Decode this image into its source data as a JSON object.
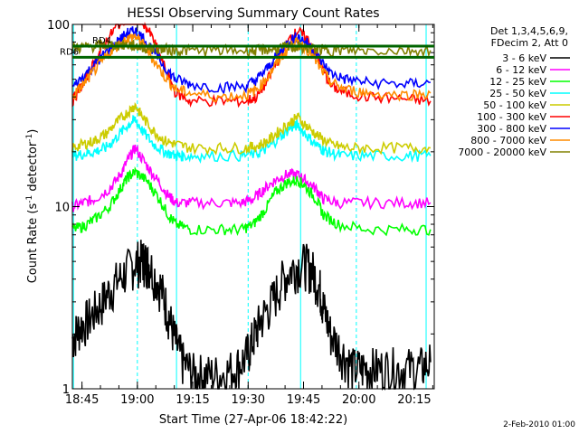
{
  "chart_data": {
    "type": "line",
    "title": "HESSI Observing Summary Count Rates",
    "xlabel": "Start Time (27-Apr-06 18:42:22)",
    "ylabel_main": "Count Rate (s",
    "ylabel_sup": "-1",
    "ylabel_mid": " detector",
    "ylabel_sup2": "-1",
    "ylabel_end": ")",
    "y_scale": "log",
    "ylim": [
      1,
      100
    ],
    "y_ticks": [
      {
        "value": 1,
        "label": "1"
      },
      {
        "value": 10,
        "label": "10"
      },
      {
        "value": 100,
        "label": "100"
      }
    ],
    "xlim_minutes": [
      0,
      98
    ],
    "x_ticks": [
      {
        "t": 2.6,
        "label": "18:45"
      },
      {
        "t": 17.6,
        "label": "19:00"
      },
      {
        "t": 32.6,
        "label": "19:15"
      },
      {
        "t": 47.6,
        "label": "19:30"
      },
      {
        "t": 62.6,
        "label": "19:45"
      },
      {
        "t": 77.6,
        "label": "20:00"
      },
      {
        "t": 92.6,
        "label": "20:15"
      }
    ],
    "legend": {
      "placement": "right",
      "header": [
        "Det 1,3,4,5,6,9,",
        "FDecim 2, Att 0"
      ]
    },
    "series": [
      {
        "name": "3 - 6 keV",
        "color": "#000000",
        "x": [
          0,
          2,
          5,
          8,
          11,
          14,
          17,
          19,
          20,
          21,
          24,
          26,
          28,
          30,
          33,
          36,
          40,
          44,
          47,
          49,
          51,
          54,
          57,
          60,
          63,
          65,
          67,
          68,
          70,
          73,
          76,
          79,
          82,
          86,
          90,
          94,
          97
        ],
        "y": [
          1.9,
          2.2,
          2.5,
          3.0,
          3.7,
          4.3,
          5.0,
          5.1,
          5.0,
          4.8,
          3.6,
          2.6,
          1.8,
          1.4,
          1.2,
          1.2,
          1.2,
          1.3,
          1.5,
          1.9,
          2.4,
          3.0,
          4.0,
          4.7,
          4.9,
          4.5,
          3.6,
          2.8,
          2.0,
          1.6,
          1.3,
          1.3,
          1.3,
          1.3,
          1.3,
          1.3,
          1.4
        ]
      },
      {
        "name": "6 - 12 keV",
        "color": "#ff00ff",
        "x": [
          0,
          3,
          6,
          10,
          13,
          15,
          17,
          20,
          23,
          26,
          28,
          32,
          40,
          46,
          49,
          52,
          55,
          58,
          61,
          63,
          66,
          68,
          72,
          80,
          90,
          97
        ],
        "y": [
          10,
          10.5,
          11,
          12.5,
          15,
          18,
          21,
          17,
          14,
          11.5,
          10.5,
          10.5,
          10.5,
          10.5,
          11,
          12.5,
          14,
          15,
          15,
          14,
          12.5,
          11,
          10.5,
          10.5,
          10.5,
          10.5
        ]
      },
      {
        "name": "12 - 25 keV",
        "color": "#00ff00",
        "x": [
          0,
          3,
          6,
          10,
          13,
          15,
          17,
          20,
          23,
          26,
          28,
          32,
          40,
          46,
          49,
          52,
          55,
          58,
          61,
          63,
          66,
          68,
          72,
          80,
          90,
          97
        ],
        "y": [
          7.5,
          7.8,
          8.5,
          10,
          12.5,
          14.5,
          15.5,
          14,
          11.5,
          9,
          8,
          7.5,
          7.5,
          7.5,
          8,
          9.5,
          12,
          13.5,
          14,
          13,
          11,
          9,
          8,
          7.5,
          7.5,
          7.5
        ]
      },
      {
        "name": "25 - 50 keV",
        "color": "#00ffff",
        "x": [
          0,
          3,
          6,
          9,
          12,
          15,
          17,
          19,
          22,
          25,
          28,
          30,
          35,
          45,
          50,
          53,
          56,
          59,
          61,
          64,
          67,
          69,
          73,
          80,
          90,
          97
        ],
        "y": [
          19,
          19.5,
          20,
          21,
          24,
          28,
          30,
          26,
          22,
          20,
          19,
          19,
          19,
          19,
          19.5,
          21,
          24,
          27,
          28,
          24,
          21,
          20,
          19,
          19,
          19,
          19
        ]
      },
      {
        "name": "50 - 100 keV",
        "color": "#cccc00",
        "x": [
          0,
          3,
          6,
          9,
          12,
          15,
          17,
          19,
          22,
          25,
          28,
          32,
          40,
          47,
          50,
          53,
          56,
          59,
          61,
          64,
          67,
          70,
          74,
          80,
          90,
          97
        ],
        "y": [
          21,
          22,
          23,
          25,
          29,
          33,
          36,
          31,
          26,
          23,
          22,
          21,
          21,
          21,
          21.5,
          23,
          26,
          29,
          31,
          27,
          24,
          22,
          21,
          21,
          21,
          21
        ]
      },
      {
        "name": "100 - 300 keV",
        "color": "#ff0000",
        "x": [
          0,
          3,
          6,
          9,
          12,
          15,
          17,
          19,
          22,
          25,
          28,
          32,
          40,
          47,
          50,
          53,
          56,
          59,
          61,
          64,
          67,
          70,
          74,
          80,
          90,
          97
        ],
        "y": [
          38,
          48,
          62,
          80,
          98,
          112,
          118,
          105,
          82,
          58,
          42,
          38,
          38,
          38,
          40,
          50,
          66,
          84,
          92,
          82,
          62,
          46,
          42,
          40,
          39,
          38
        ]
      },
      {
        "name": "300 - 800 keV",
        "color": "#0000ff",
        "x": [
          0,
          3,
          6,
          9,
          12,
          15,
          17,
          19,
          22,
          25,
          28,
          32,
          40,
          47,
          50,
          53,
          56,
          59,
          61,
          64,
          67,
          70,
          74,
          80,
          90,
          97
        ],
        "y": [
          45,
          52,
          60,
          70,
          80,
          90,
          92,
          85,
          72,
          58,
          50,
          47,
          45,
          46,
          50,
          58,
          70,
          82,
          86,
          78,
          64,
          54,
          50,
          48,
          47,
          48
        ]
      },
      {
        "name": "800 - 7000 keV",
        "color": "#ff8c00",
        "x": [
          0,
          3,
          6,
          9,
          12,
          15,
          17,
          19,
          22,
          25,
          28,
          32,
          40,
          47,
          50,
          53,
          56,
          59,
          61,
          64,
          67,
          70,
          74,
          80,
          90,
          97
        ],
        "y": [
          40,
          47,
          56,
          66,
          76,
          84,
          86,
          78,
          64,
          52,
          44,
          42,
          40,
          41,
          44,
          52,
          64,
          76,
          80,
          72,
          58,
          48,
          44,
          42,
          41,
          42
        ]
      },
      {
        "name": "7000 - 20000 keV",
        "color": "#808000",
        "x": [
          0,
          3,
          6,
          9,
          12,
          15,
          17,
          19,
          22,
          25,
          28,
          32,
          40,
          47,
          50,
          53,
          56,
          59,
          61,
          64,
          67,
          70,
          74,
          80,
          90,
          97
        ],
        "y": [
          74,
          75,
          76,
          77,
          77,
          77,
          76,
          75,
          74,
          73,
          72,
          72,
          72,
          72,
          72,
          73,
          74,
          75,
          75,
          74,
          73,
          72,
          72,
          72,
          72,
          72
        ]
      }
    ],
    "reference_lines": [
      {
        "label": "RD6",
        "color": "#006400",
        "y": 66
      },
      {
        "label": "RD4",
        "color": "#006400",
        "y": 76
      }
    ],
    "timestamp": "2-Feb-2010 01:00"
  }
}
